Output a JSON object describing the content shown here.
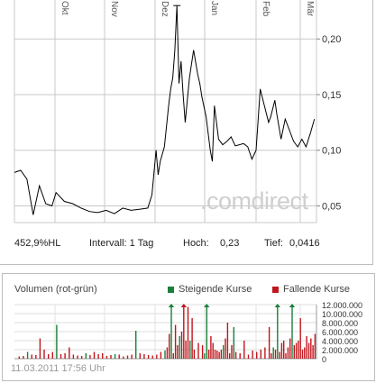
{
  "colors": {
    "price_line": "#000000",
    "grid": "#c8c8c8",
    "rising": "#1a7f3c",
    "falling": "#c0161c",
    "watermark": "#cfcfcf"
  },
  "watermark": ".comdirect",
  "stats": {
    "performance": "452,9%HL",
    "interval": "Intervall: 1 Tag",
    "high_label": "Hoch:",
    "high_value": "0,23",
    "low_label": "Tief:",
    "low_value": "0,0416"
  },
  "volume": {
    "title": "Volumen (rot-grün)",
    "legend_rising": "Steigende Kurse",
    "legend_falling": "Fallende Kurse"
  },
  "timestamp": "11.03.2011 17:56 Uhr",
  "chart_data": [
    {
      "type": "line",
      "xlabel": "",
      "ylabel": "",
      "x_tick_labels": [
        "Okt",
        "Nov",
        "Dez",
        "Jan",
        "Feb",
        "Mär"
      ],
      "y_ticks": [
        "0,05",
        "0,10",
        "0,15",
        "0,20"
      ],
      "ylim": [
        0.035,
        0.235
      ],
      "n_days": 120,
      "month_start_index": [
        0,
        21,
        43,
        64,
        85,
        105
      ],
      "grid": true,
      "x": [
        0,
        3,
        6,
        9,
        12,
        15,
        18,
        20,
        24,
        28,
        32,
        36,
        40,
        44,
        48,
        52,
        56,
        60,
        64,
        66,
        68,
        69,
        70,
        72,
        74,
        75,
        76,
        77,
        78,
        79,
        80,
        81,
        82,
        84,
        86,
        88,
        89,
        90,
        92,
        94,
        95,
        96,
        98,
        100,
        102,
        104,
        106,
        108,
        110,
        112,
        114,
        116,
        118,
        120,
        122,
        123,
        125,
        126,
        128,
        130,
        132,
        134,
        136,
        138,
        140,
        142,
        144
      ],
      "values": [
        0.08,
        0.082,
        0.074,
        0.042,
        0.068,
        0.052,
        0.05,
        0.062,
        0.054,
        0.052,
        0.048,
        0.045,
        0.044,
        0.046,
        0.043,
        0.048,
        0.046,
        0.047,
        0.048,
        0.06,
        0.1,
        0.078,
        0.09,
        0.103,
        0.14,
        0.155,
        0.165,
        0.19,
        0.23,
        0.16,
        0.18,
        0.15,
        0.125,
        0.165,
        0.19,
        0.168,
        0.16,
        0.148,
        0.13,
        0.1,
        0.09,
        0.14,
        0.11,
        0.105,
        0.108,
        0.112,
        0.104,
        0.105,
        0.106,
        0.103,
        0.092,
        0.1,
        0.155,
        0.14,
        0.125,
        0.13,
        0.145,
        0.132,
        0.11,
        0.128,
        0.118,
        0.108,
        0.103,
        0.11,
        0.103,
        0.115,
        0.128
      ],
      "high": 0.23,
      "low": 0.0416
    },
    {
      "type": "bar",
      "y_ticks": [
        "0",
        "2.000.000",
        "4.000.000",
        "6.000.000",
        "8.000.000",
        "10.000.000",
        "12.000.000"
      ],
      "ylim": [
        0,
        12000000
      ],
      "series": [
        {
          "name": "Steigende Kurse",
          "x": [
            6,
            20,
            34,
            48,
            58,
            72,
            75,
            79,
            84,
            91,
            92,
            100,
            105,
            124,
            126,
            133
          ],
          "values": [
            1500000,
            7500000,
            1200000,
            1000000,
            6200000,
            1800000,
            12000000,
            5000000,
            4000000,
            1200000,
            12000000,
            3000000,
            7000000,
            2500000,
            12000000,
            12000000
          ]
        },
        {
          "name": "Fallende Kurse",
          "x": [
            2,
            4,
            8,
            10,
            12,
            14,
            16,
            18,
            22,
            24,
            26,
            28,
            30,
            32,
            36,
            38,
            40,
            42,
            44,
            46,
            50,
            52,
            54,
            56,
            60,
            62,
            64,
            66,
            68,
            70,
            73,
            74,
            76,
            77,
            78,
            80,
            81,
            82,
            83,
            85,
            86,
            88,
            90,
            93,
            94,
            95,
            96,
            97,
            98,
            99,
            101,
            102,
            103,
            104,
            106,
            108,
            110,
            112,
            114,
            116,
            118,
            120,
            122,
            123,
            125,
            127,
            128,
            129,
            130,
            131,
            132,
            134,
            135,
            136,
            137,
            138,
            139,
            140,
            141,
            142,
            143,
            144
          ],
          "values": [
            500000,
            600000,
            900000,
            800000,
            4500000,
            2000000,
            1000000,
            1500000,
            1000000,
            1200000,
            2500000,
            900000,
            700000,
            600000,
            800000,
            1500000,
            1000000,
            1200000,
            600000,
            800000,
            900000,
            500000,
            700000,
            900000,
            1200000,
            1000000,
            800000,
            700000,
            900000,
            1500000,
            2500000,
            5500000,
            1200000,
            7500000,
            3000000,
            6000000,
            12000000,
            4000000,
            11500000,
            9000000,
            2000000,
            3500000,
            3000000,
            2000000,
            5000000,
            3500000,
            2000000,
            1800000,
            1500000,
            2000000,
            4500000,
            8000000,
            1200000,
            3000000,
            1500000,
            1200000,
            4000000,
            900000,
            1800000,
            1500000,
            2000000,
            2500000,
            7000000,
            1200000,
            2000000,
            1500000,
            3500000,
            4000000,
            1200000,
            2500000,
            4500000,
            3000000,
            3500000,
            4000000,
            9000000,
            2000000,
            2500000,
            5000000,
            3500000,
            4500000,
            3000000,
            5500000
          ]
        }
      ]
    }
  ]
}
